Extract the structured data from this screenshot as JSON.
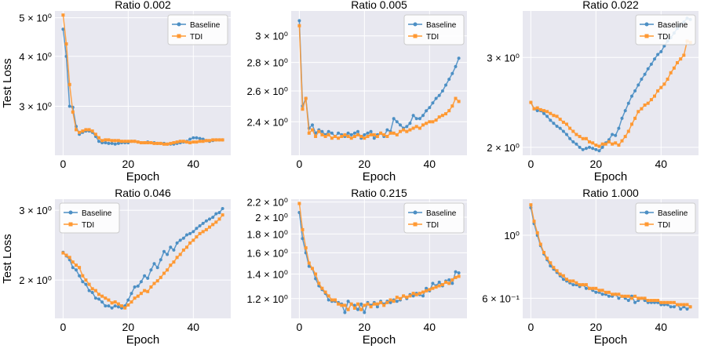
{
  "figure": {
    "ylabel": "Test Loss",
    "xlabel": "Epoch"
  },
  "style": {
    "baseline_color": "#4C8FC4",
    "tdi_color": "#FF9933",
    "panel_bg": "#E8E8F0",
    "grid_color": "#FFFFFF"
  },
  "chart_data": [
    {
      "type": "line",
      "title": "Ratio 0.002",
      "xlabel": "Epoch",
      "ylabel": "Test Loss",
      "yscale": "log",
      "xlim": [
        -2.5,
        51.5
      ],
      "ylim": [
        2.26,
        5.2
      ],
      "xticks": [
        0,
        20,
        40
      ],
      "yticks": [
        {
          "value": 3,
          "label": "3 × 10⁰"
        },
        {
          "value": 4,
          "label": "4 × 10⁰"
        },
        {
          "value": 5,
          "label": "5 × 10⁰"
        }
      ],
      "legend": "top-right",
      "series": [
        {
          "name": "Baseline",
          "marker": "circle",
          "values": [
            4.68,
            4.0,
            3.0,
            2.98,
            2.67,
            2.55,
            2.58,
            2.6,
            2.6,
            2.58,
            2.52,
            2.45,
            2.43,
            2.43,
            2.42,
            2.42,
            2.41,
            2.42,
            2.43,
            2.43,
            2.43,
            2.45,
            2.45,
            2.44,
            2.43,
            2.43,
            2.44,
            2.43,
            2.43,
            2.42,
            2.42,
            2.42,
            2.41,
            2.41,
            2.41,
            2.42,
            2.43,
            2.44,
            2.45,
            2.48,
            2.5,
            2.5,
            2.49,
            2.48,
            2.46,
            2.45,
            2.46,
            2.47,
            2.47,
            2.47
          ]
        },
        {
          "name": "TDI",
          "marker": "square",
          "values": [
            5.08,
            4.3,
            3.4,
            2.9,
            2.62,
            2.58,
            2.6,
            2.62,
            2.62,
            2.6,
            2.55,
            2.5,
            2.46,
            2.47,
            2.47,
            2.46,
            2.46,
            2.46,
            2.45,
            2.45,
            2.45,
            2.45,
            2.45,
            2.44,
            2.43,
            2.43,
            2.43,
            2.43,
            2.42,
            2.42,
            2.42,
            2.41,
            2.41,
            2.42,
            2.43,
            2.44,
            2.45,
            2.45,
            2.44,
            2.43,
            2.44,
            2.44,
            2.45,
            2.45,
            2.46,
            2.46,
            2.47,
            2.47,
            2.47,
            2.47
          ]
        }
      ]
    },
    {
      "type": "line",
      "title": "Ratio 0.005",
      "xlabel": "Epoch",
      "ylabel": "",
      "yscale": "log",
      "xlim": [
        -2.5,
        51.5
      ],
      "ylim": [
        2.2,
        3.2
      ],
      "xticks": [
        0,
        20,
        40
      ],
      "yticks": [
        {
          "value": 2.4,
          "label": "2.4 × 10⁰"
        },
        {
          "value": 2.6,
          "label": "2.6 × 10⁰"
        },
        {
          "value": 2.8,
          "label": "2.8 × 10⁰"
        },
        {
          "value": 3.0,
          "label": "3 × 10⁰"
        }
      ],
      "legend": "top-right",
      "series": [
        {
          "name": "Baseline",
          "marker": "circle",
          "values": [
            3.12,
            2.5,
            2.55,
            2.36,
            2.38,
            2.33,
            2.35,
            2.34,
            2.32,
            2.34,
            2.33,
            2.31,
            2.33,
            2.32,
            2.31,
            2.33,
            2.32,
            2.33,
            2.34,
            2.3,
            2.32,
            2.33,
            2.34,
            2.3,
            2.32,
            2.33,
            2.31,
            2.35,
            2.34,
            2.42,
            2.4,
            2.38,
            2.36,
            2.37,
            2.39,
            2.44,
            2.42,
            2.42,
            2.44,
            2.47,
            2.49,
            2.52,
            2.55,
            2.57,
            2.6,
            2.64,
            2.68,
            2.72,
            2.77,
            2.83
          ]
        },
        {
          "name": "TDI",
          "marker": "square",
          "values": [
            3.08,
            2.48,
            2.55,
            2.33,
            2.35,
            2.31,
            2.34,
            2.32,
            2.31,
            2.32,
            2.3,
            2.31,
            2.3,
            2.31,
            2.32,
            2.31,
            2.3,
            2.31,
            2.32,
            2.31,
            2.3,
            2.31,
            2.32,
            2.32,
            2.31,
            2.33,
            2.32,
            2.31,
            2.33,
            2.33,
            2.32,
            2.34,
            2.35,
            2.34,
            2.35,
            2.36,
            2.37,
            2.36,
            2.38,
            2.39,
            2.4,
            2.4,
            2.41,
            2.43,
            2.44,
            2.45,
            2.47,
            2.5,
            2.55,
            2.53
          ]
        }
      ]
    },
    {
      "type": "line",
      "title": "Ratio 0.022",
      "xlabel": "Epoch",
      "ylabel": "",
      "yscale": "log",
      "xlim": [
        -2.5,
        51.5
      ],
      "ylim": [
        1.93,
        3.7
      ],
      "xticks": [
        0,
        20,
        40
      ],
      "yticks": [
        {
          "value": 2,
          "label": "2 × 10⁰"
        },
        {
          "value": 3,
          "label": "3 × 10⁰"
        }
      ],
      "legend": "top-right",
      "series": [
        {
          "name": "Baseline",
          "marker": "circle",
          "values": [
            2.45,
            2.38,
            2.36,
            2.36,
            2.33,
            2.3,
            2.26,
            2.23,
            2.2,
            2.18,
            2.15,
            2.12,
            2.08,
            2.05,
            2.03,
            2.0,
            1.98,
            1.99,
            2.0,
            1.99,
            1.98,
            1.97,
            2.0,
            2.04,
            2.07,
            2.12,
            2.11,
            2.18,
            2.28,
            2.36,
            2.44,
            2.52,
            2.58,
            2.65,
            2.72,
            2.78,
            2.85,
            2.91,
            2.98,
            3.04,
            3.08,
            3.16,
            3.23,
            3.28,
            3.35,
            3.42,
            3.48,
            3.52,
            3.58,
            3.56
          ]
        },
        {
          "name": "TDI",
          "marker": "square",
          "values": [
            2.45,
            2.38,
            2.39,
            2.37,
            2.36,
            2.35,
            2.33,
            2.31,
            2.3,
            2.27,
            2.24,
            2.22,
            2.18,
            2.15,
            2.12,
            2.1,
            2.08,
            2.08,
            2.05,
            2.04,
            2.02,
            2.01,
            2.03,
            2.03,
            2.05,
            2.03,
            2.04,
            2.02,
            2.06,
            2.1,
            2.15,
            2.22,
            2.28,
            2.35,
            2.38,
            2.42,
            2.44,
            2.48,
            2.52,
            2.58,
            2.62,
            2.66,
            2.72,
            2.8,
            2.86,
            2.93,
            2.98,
            3.03,
            3.23,
            3.21
          ]
        }
      ]
    },
    {
      "type": "line",
      "title": "Ratio 0.046",
      "xlabel": "Epoch",
      "ylabel": "Test Loss",
      "yscale": "log",
      "xlim": [
        -2.5,
        51.5
      ],
      "ylim": [
        1.6,
        3.2
      ],
      "xticks": [
        0,
        20,
        40
      ],
      "yticks": [
        {
          "value": 2,
          "label": "2 × 10⁰"
        },
        {
          "value": 3,
          "label": "3 × 10⁰"
        }
      ],
      "legend": "top-left",
      "series": [
        {
          "name": "Baseline",
          "marker": "circle",
          "values": [
            2.35,
            2.3,
            2.25,
            2.15,
            2.12,
            2.05,
            1.98,
            1.95,
            1.88,
            1.86,
            1.8,
            1.79,
            1.76,
            1.72,
            1.72,
            1.7,
            1.72,
            1.71,
            1.7,
            1.72,
            1.78,
            1.85,
            1.92,
            1.93,
            1.98,
            2.05,
            2.02,
            2.12,
            2.2,
            2.15,
            2.25,
            2.36,
            2.32,
            2.42,
            2.38,
            2.48,
            2.52,
            2.55,
            2.6,
            2.62,
            2.65,
            2.7,
            2.74,
            2.78,
            2.82,
            2.85,
            2.88,
            2.94,
            2.96,
            3.03
          ]
        },
        {
          "name": "TDI",
          "marker": "square",
          "values": [
            2.34,
            2.31,
            2.28,
            2.22,
            2.18,
            2.15,
            2.05,
            2.0,
            1.95,
            1.9,
            1.88,
            1.84,
            1.82,
            1.8,
            1.78,
            1.75,
            1.76,
            1.74,
            1.72,
            1.7,
            1.73,
            1.76,
            1.8,
            1.82,
            1.85,
            1.88,
            1.87,
            1.92,
            1.96,
            1.99,
            2.03,
            2.08,
            2.12,
            2.18,
            2.22,
            2.28,
            2.32,
            2.38,
            2.42,
            2.48,
            2.52,
            2.57,
            2.62,
            2.65,
            2.68,
            2.72,
            2.76,
            2.8,
            2.85,
            2.92
          ]
        }
      ]
    },
    {
      "type": "line",
      "title": "Ratio 0.215",
      "xlabel": "Epoch",
      "ylabel": "",
      "yscale": "log",
      "xlim": [
        -2.5,
        51.5
      ],
      "ylim": [
        1.06,
        2.24
      ],
      "xticks": [
        0,
        20,
        40
      ],
      "yticks": [
        {
          "value": 1.2,
          "label": "1.2 × 10⁰"
        },
        {
          "value": 1.4,
          "label": "1.4 × 10⁰"
        },
        {
          "value": 1.6,
          "label": "1.6 × 10⁰"
        },
        {
          "value": 1.8,
          "label": "1.8 × 10⁰"
        },
        {
          "value": 2.0,
          "label": "2 × 10⁰"
        },
        {
          "value": 2.2,
          "label": "2.2 × 10⁰"
        }
      ],
      "legend": "top-right",
      "series": [
        {
          "name": "Baseline",
          "marker": "circle",
          "values": [
            2.06,
            1.75,
            1.6,
            1.47,
            1.45,
            1.36,
            1.3,
            1.27,
            1.24,
            1.19,
            1.18,
            1.18,
            1.17,
            1.16,
            1.1,
            1.18,
            1.16,
            1.15,
            1.12,
            1.16,
            1.1,
            1.17,
            1.15,
            1.17,
            1.14,
            1.18,
            1.16,
            1.18,
            1.17,
            1.19,
            1.18,
            1.19,
            1.22,
            1.2,
            1.23,
            1.22,
            1.24,
            1.23,
            1.22,
            1.28,
            1.26,
            1.32,
            1.3,
            1.33,
            1.3,
            1.34,
            1.35,
            1.32,
            1.42,
            1.41
          ]
        },
        {
          "name": "TDI",
          "marker": "square",
          "values": [
            2.18,
            1.85,
            1.65,
            1.5,
            1.45,
            1.4,
            1.32,
            1.28,
            1.25,
            1.22,
            1.19,
            1.19,
            1.16,
            1.15,
            1.15,
            1.12,
            1.16,
            1.13,
            1.16,
            1.12,
            1.15,
            1.16,
            1.14,
            1.16,
            1.16,
            1.17,
            1.15,
            1.17,
            1.19,
            1.18,
            1.21,
            1.2,
            1.22,
            1.21,
            1.22,
            1.24,
            1.23,
            1.24,
            1.25,
            1.26,
            1.27,
            1.28,
            1.29,
            1.3,
            1.31,
            1.33,
            1.32,
            1.35,
            1.37,
            1.38
          ]
        }
      ]
    },
    {
      "type": "line",
      "title": "Ratio 1.000",
      "xlabel": "Epoch",
      "ylabel": "",
      "yscale": "log",
      "xlim": [
        -2.5,
        51.5
      ],
      "ylim": [
        0.51,
        1.34
      ],
      "xticks": [
        0,
        20,
        40
      ],
      "yticks": [
        {
          "value": 0.6,
          "label": "6 × 10⁻¹"
        },
        {
          "value": 1.0,
          "label": "10⁰"
        }
      ],
      "legend": "top-right",
      "series": [
        {
          "name": "Baseline",
          "marker": "circle",
          "values": [
            1.25,
            1.1,
            1.0,
            0.92,
            0.86,
            0.82,
            0.78,
            0.76,
            0.74,
            0.72,
            0.7,
            0.69,
            0.68,
            0.67,
            0.67,
            0.66,
            0.67,
            0.65,
            0.65,
            0.64,
            0.63,
            0.63,
            0.62,
            0.62,
            0.61,
            0.61,
            0.62,
            0.6,
            0.61,
            0.6,
            0.59,
            0.61,
            0.58,
            0.59,
            0.6,
            0.59,
            0.58,
            0.58,
            0.58,
            0.58,
            0.57,
            0.57,
            0.57,
            0.56,
            0.56,
            0.57,
            0.55,
            0.56,
            0.55,
            0.56
          ]
        },
        {
          "name": "TDI",
          "marker": "square",
          "values": [
            1.28,
            1.12,
            1.02,
            0.93,
            0.87,
            0.83,
            0.8,
            0.77,
            0.75,
            0.73,
            0.72,
            0.7,
            0.69,
            0.69,
            0.68,
            0.67,
            0.67,
            0.67,
            0.65,
            0.65,
            0.65,
            0.64,
            0.64,
            0.63,
            0.63,
            0.62,
            0.62,
            0.62,
            0.61,
            0.61,
            0.61,
            0.6,
            0.61,
            0.6,
            0.6,
            0.6,
            0.59,
            0.59,
            0.59,
            0.59,
            0.58,
            0.58,
            0.58,
            0.58,
            0.58,
            0.57,
            0.57,
            0.57,
            0.57,
            0.56
          ]
        }
      ]
    }
  ]
}
